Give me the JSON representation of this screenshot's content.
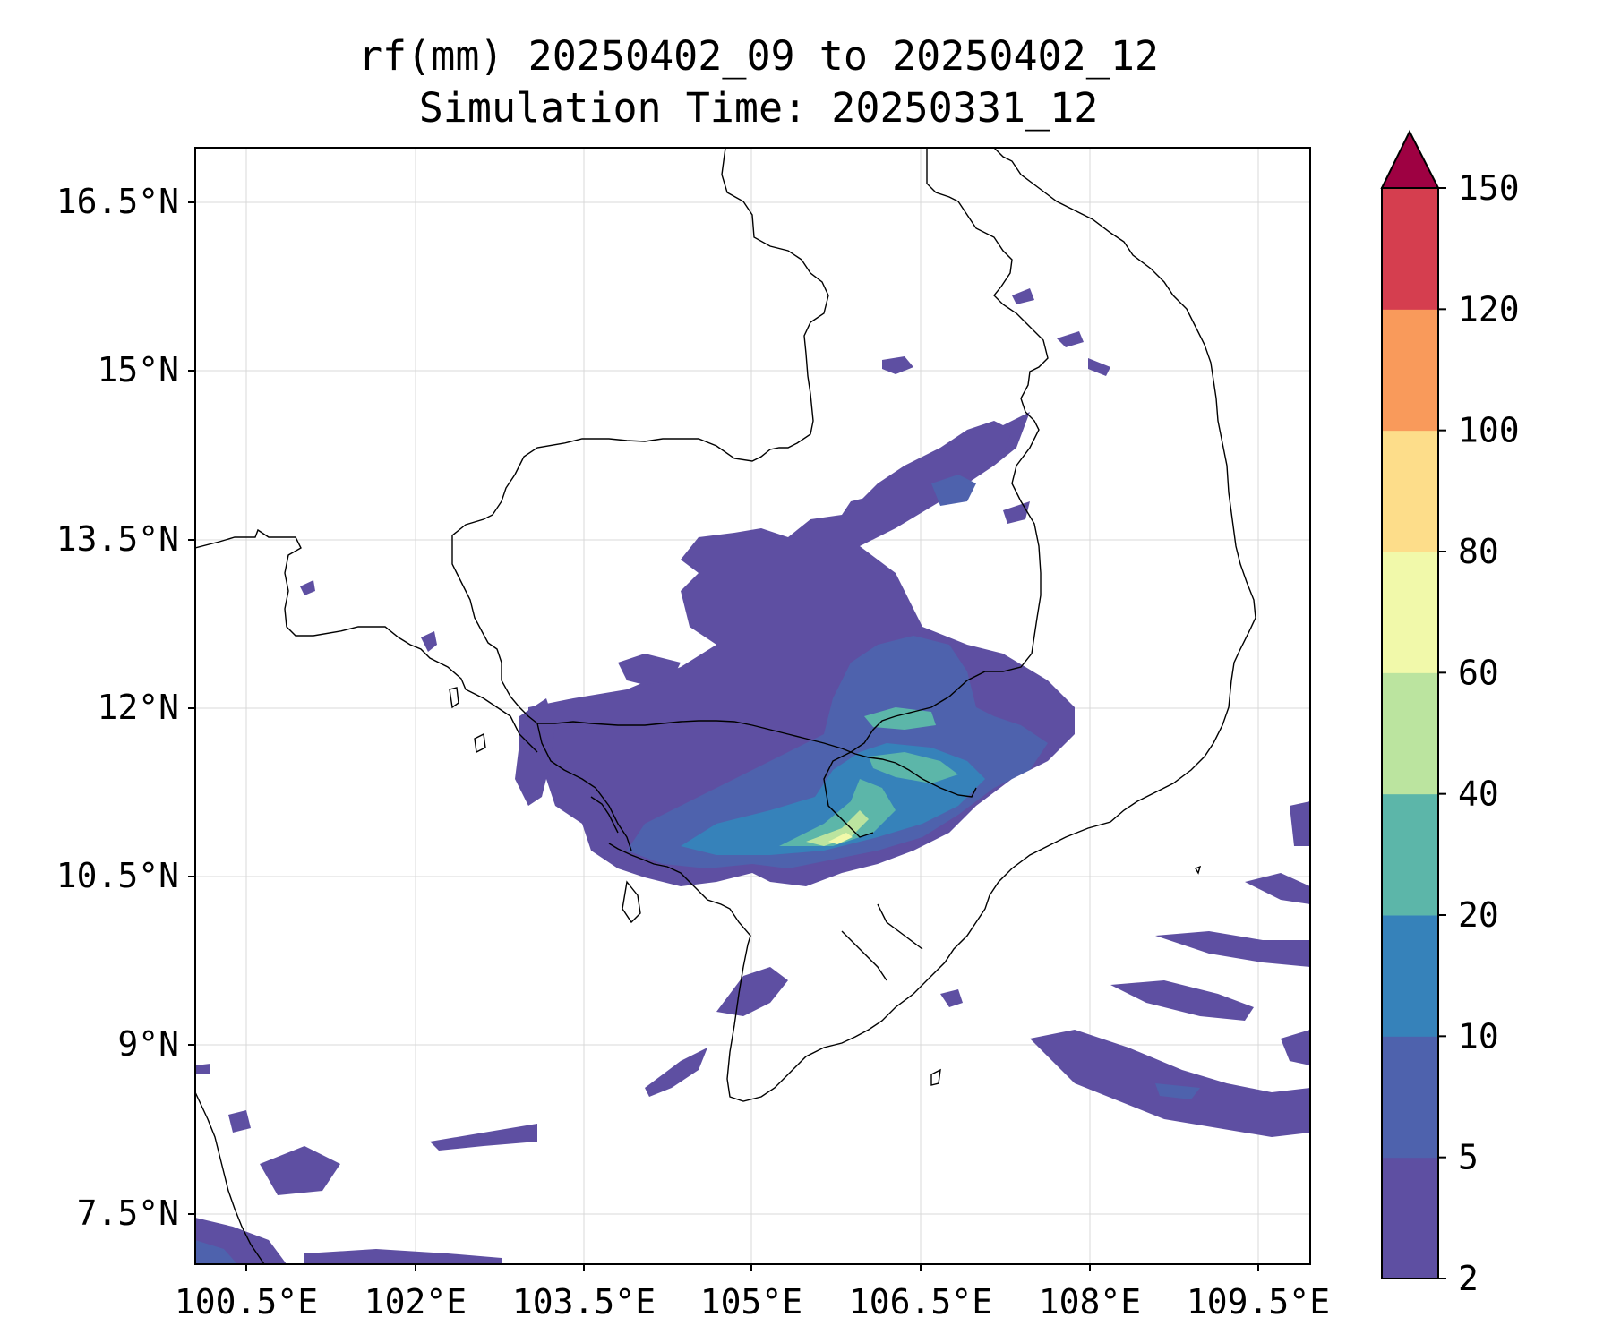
{
  "title": {
    "line1": "rf(mm) 20250402_09 to 20250402_12",
    "line2": "Simulation Time: 20250331_12"
  },
  "map": {
    "lon_range": [
      100.2,
      110.1
    ],
    "lat_range": [
      7.0,
      16.9
    ],
    "x_ticks": [
      "100.5°E",
      "102°E",
      "103.5°E",
      "105°E",
      "106.5°E",
      "108°E",
      "109.5°E"
    ],
    "y_ticks": [
      "16.5°N",
      "15°N",
      "13.5°N",
      "12°N",
      "10.5°N",
      "9°N",
      "7.5°N"
    ],
    "grid": true
  },
  "colorbar": {
    "levels": [
      "2",
      "5",
      "10",
      "20",
      "40",
      "60",
      "80",
      "100",
      "120",
      "150"
    ],
    "colors": [
      "#5e4fa2",
      "#4e62ad",
      "#3682ba",
      "#5cb6a9",
      "#bbe49f",
      "#f1f9aa",
      "#fddd8a",
      "#f99a5b",
      "#d53e4f",
      "#9e0142"
    ],
    "extend": "max"
  }
}
